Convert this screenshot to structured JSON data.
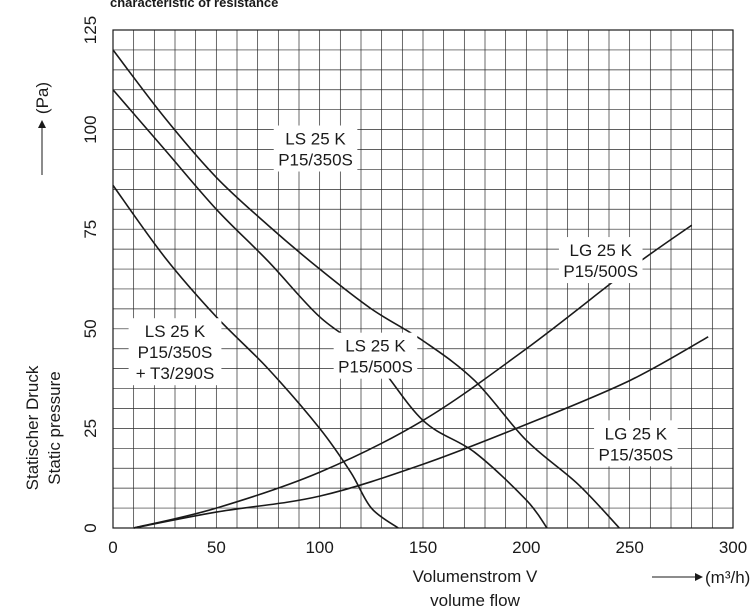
{
  "chart_data": {
    "type": "line",
    "title": "characteristic of resistance",
    "xlabel": "Volumenstrom V",
    "xlabel2": "volume flow",
    "xunit": "(m³/h)",
    "ylabel": "Statischer Druck",
    "ylabel2": "Static pressure",
    "yunit": "(Pa)",
    "xlim": [
      0,
      300
    ],
    "ylim": [
      0,
      125
    ],
    "xticks": [
      "0",
      "50",
      "100",
      "150",
      "200",
      "250",
      "300"
    ],
    "yticks": [
      "0",
      "25",
      "50",
      "75",
      "100",
      "125"
    ],
    "grid": true,
    "series": [
      {
        "name_lines": [
          "LS 25 K",
          "P15/350S"
        ],
        "points": [
          [
            0,
            120
          ],
          [
            25,
            103
          ],
          [
            50,
            88
          ],
          [
            75,
            76
          ],
          [
            100,
            65
          ],
          [
            125,
            55
          ],
          [
            150,
            47
          ],
          [
            175,
            37
          ],
          [
            200,
            22
          ],
          [
            225,
            11
          ],
          [
            245,
            0
          ]
        ]
      },
      {
        "name_lines": [
          "LS 25 K",
          "P15/500S"
        ],
        "points": [
          [
            0,
            110
          ],
          [
            25,
            95
          ],
          [
            50,
            80
          ],
          [
            75,
            67
          ],
          [
            100,
            53
          ],
          [
            125,
            43
          ],
          [
            150,
            27
          ],
          [
            175,
            19
          ],
          [
            200,
            7
          ],
          [
            210,
            0
          ]
        ]
      },
      {
        "name_lines": [
          "LS 25 K",
          "P15/350S",
          "+ T3/290S"
        ],
        "points": [
          [
            0,
            86
          ],
          [
            25,
            68
          ],
          [
            50,
            53
          ],
          [
            75,
            40
          ],
          [
            100,
            25
          ],
          [
            115,
            14
          ],
          [
            125,
            5
          ],
          [
            138,
            0
          ]
        ]
      },
      {
        "name_lines": [
          "LG 25 K",
          "P15/500S"
        ],
        "points": [
          [
            10,
            0
          ],
          [
            50,
            5
          ],
          [
            100,
            14
          ],
          [
            150,
            27
          ],
          [
            200,
            45
          ],
          [
            250,
            65
          ],
          [
            280,
            76
          ]
        ]
      },
      {
        "name_lines": [
          "LG 25 K",
          "P15/350S"
        ],
        "points": [
          [
            10,
            0
          ],
          [
            50,
            4
          ],
          [
            100,
            8
          ],
          [
            150,
            16
          ],
          [
            200,
            26
          ],
          [
            250,
            37
          ],
          [
            288,
            48
          ]
        ]
      }
    ]
  }
}
